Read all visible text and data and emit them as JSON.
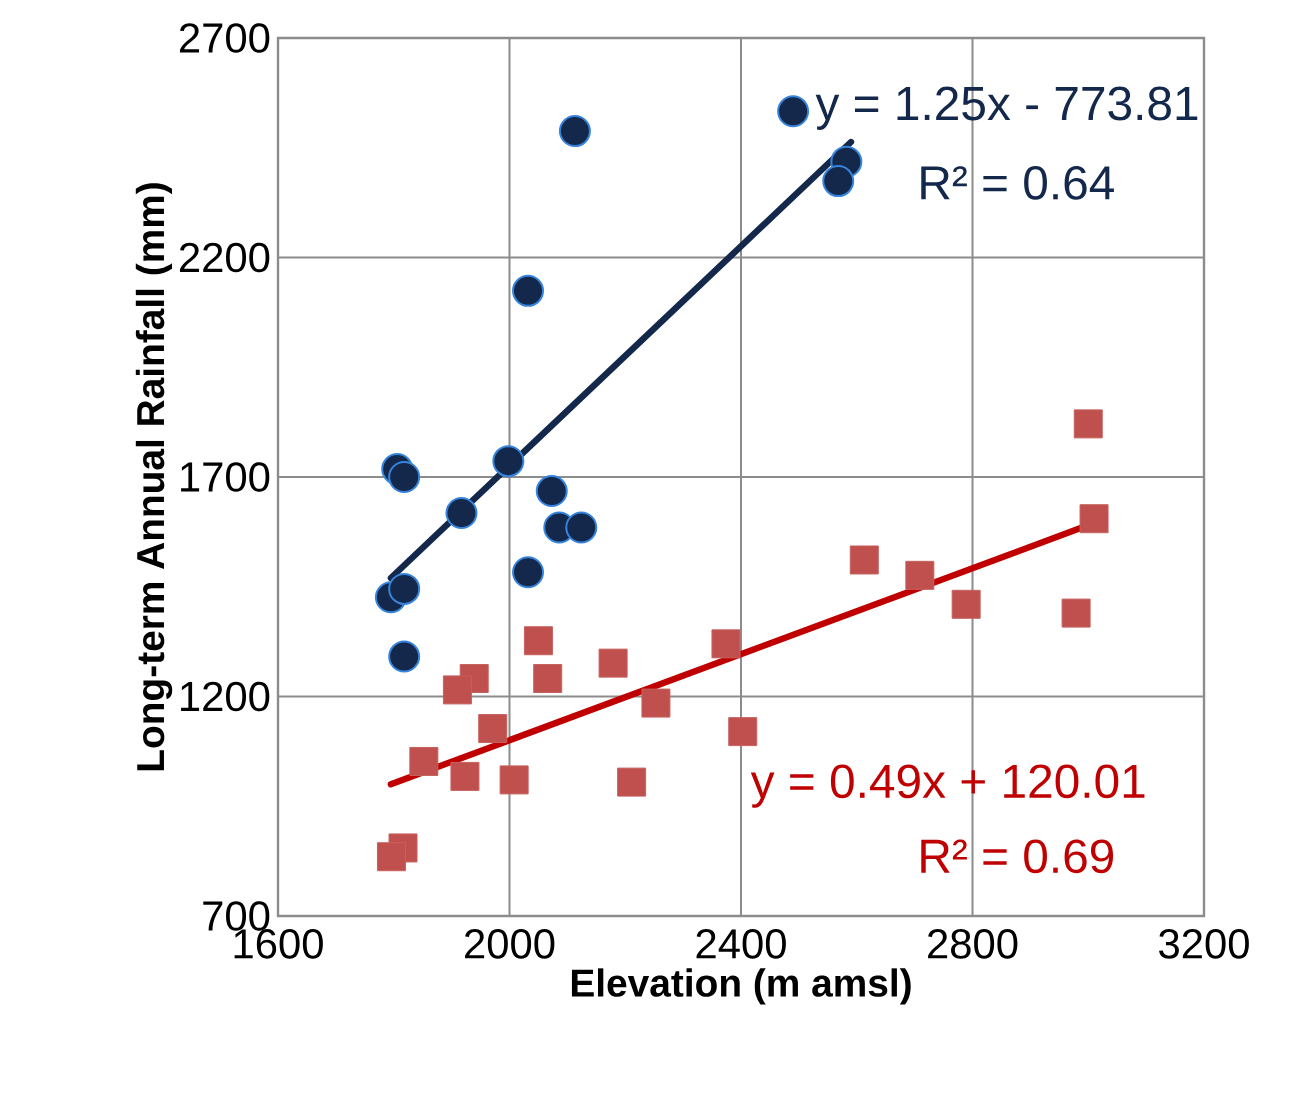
{
  "chart_data": {
    "type": "scatter",
    "xlabel": "Elevation (m amsl)",
    "ylabel": "Long-term Annual Rainfall  (mm)",
    "xlim": [
      1600,
      3200
    ],
    "xticks": [
      1600,
      2000,
      2400,
      2800,
      3200
    ],
    "ylim": [
      700,
      2700
    ],
    "yticks": [
      700,
      1200,
      1700,
      2200,
      2700
    ],
    "grid": true,
    "series": [
      {
        "color": "#13284a",
        "marker": "circle",
        "x": [
          2113,
          2032,
          1806,
          1818,
          1998,
          2490,
          2582,
          2568,
          1917,
          2073,
          2086,
          2124,
          1795,
          1818,
          2032,
          1818
        ],
        "values": [
          2488,
          2124,
          1718,
          1700,
          1736,
          2533,
          2418,
          2374,
          1618,
          1668,
          1585,
          1585,
          1426,
          1445,
          1483,
          1291
        ]
      },
      {
        "color": "#c0504d",
        "marker": "square",
        "x": [
          2050,
          1939,
          1910,
          2066,
          2179,
          2374,
          2253,
          1971,
          2403,
          1852,
          1923,
          2008,
          2211,
          1816,
          1796,
          3000,
          3010,
          2613,
          2709,
          2789,
          2979
        ],
        "values": [
          1327,
          1241,
          1215,
          1241,
          1276,
          1320,
          1185,
          1127,
          1120,
          1052,
          1018,
          1010,
          1005,
          855,
          835,
          1821,
          1605,
          1511,
          1476,
          1410,
          1390
        ]
      },
      {
        "type": "line",
        "color": "#13284a",
        "marker": "none",
        "x": [
          1795,
          2590
        ],
        "values": [
          1470,
          2463
        ]
      },
      {
        "type": "line",
        "color": "#c00000",
        "marker": "none",
        "x": [
          1795,
          3010
        ],
        "values": [
          1000,
          1595
        ]
      }
    ],
    "annotations": [
      "y = 1.25x - 773.81",
      "R² = 0.64",
      "y = 0.49x + 120.01",
      "R² = 0.69"
    ]
  }
}
